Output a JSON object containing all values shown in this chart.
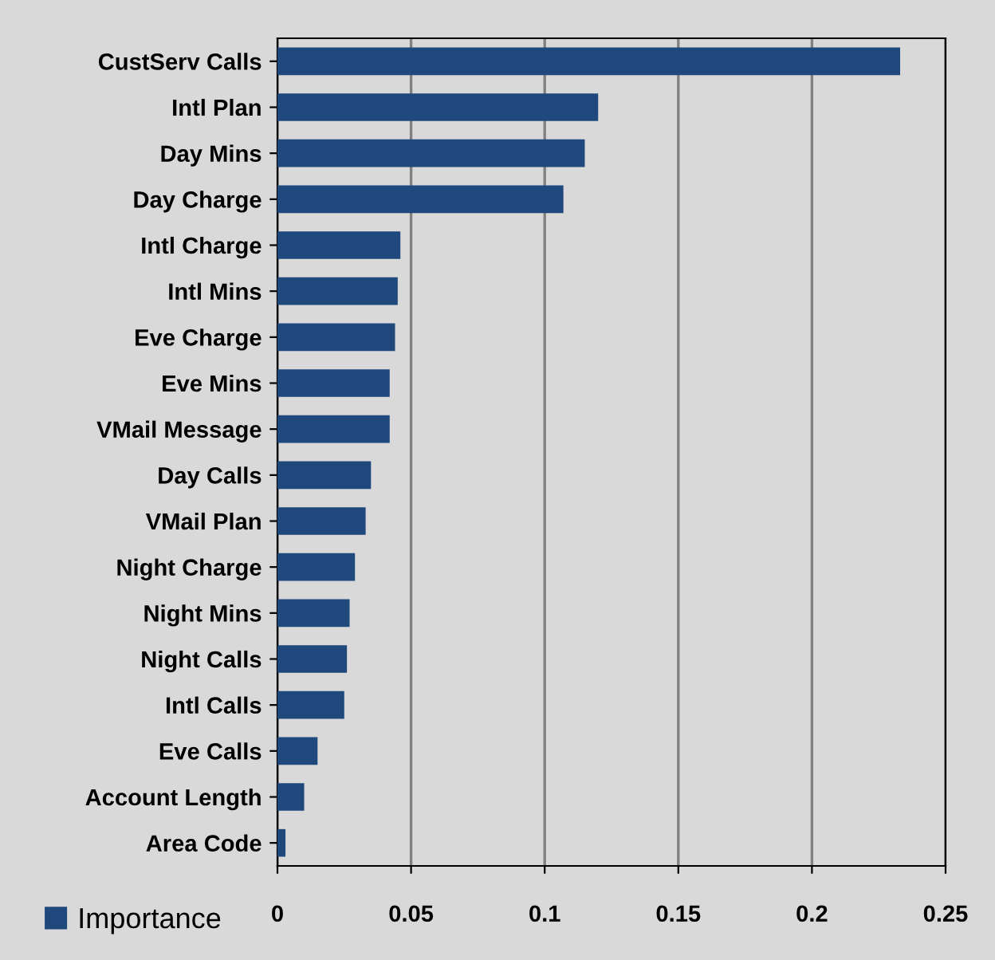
{
  "chart_data": {
    "type": "bar",
    "orientation": "horizontal",
    "categories": [
      "CustServ Calls",
      "Intl Plan",
      "Day Mins",
      "Day Charge",
      "Intl Charge",
      "Intl Mins",
      "Eve Charge",
      "Eve Mins",
      "VMail Message",
      "Day Calls",
      "VMail Plan",
      "Night Charge",
      "Night Mins",
      "Night Calls",
      "Intl Calls",
      "Eve Calls",
      "Account Length",
      "Area Code"
    ],
    "series": [
      {
        "name": "Importance",
        "color": "#1f497d",
        "values": [
          0.233,
          0.12,
          0.115,
          0.107,
          0.046,
          0.045,
          0.044,
          0.042,
          0.042,
          0.035,
          0.033,
          0.029,
          0.027,
          0.026,
          0.025,
          0.015,
          0.01,
          0.003
        ]
      }
    ],
    "xlim": [
      0,
      0.25
    ],
    "xticks": [
      0,
      0.05,
      0.1,
      0.15,
      0.2,
      0.25
    ],
    "grid": "x",
    "legend": "bottom left"
  }
}
